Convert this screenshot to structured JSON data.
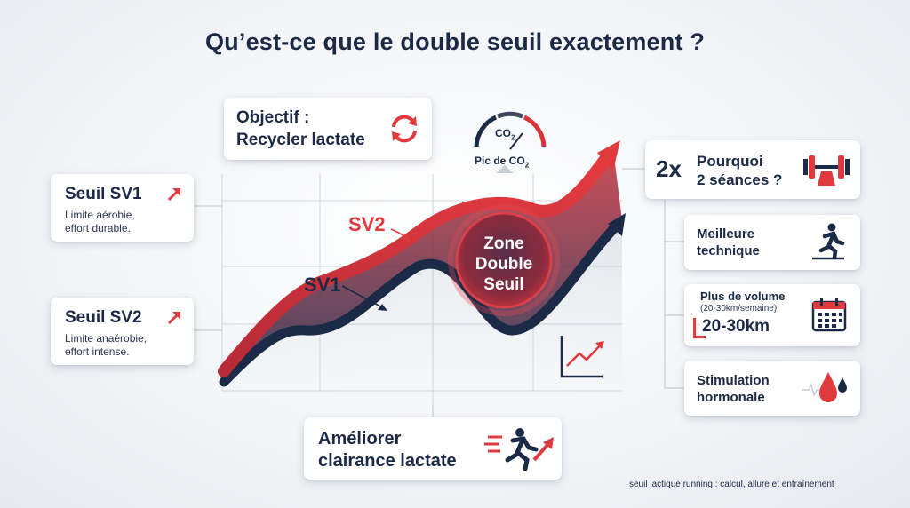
{
  "title": "Qu’est-ce que le double seuil exactement ?",
  "objective": {
    "line1": "Objectif :",
    "line2": "Recycler lactate",
    "icon": "recycle-icon"
  },
  "gauge": {
    "co2": "CO",
    "sub": "2",
    "label": "Pic de CO",
    "label_sub": "2",
    "icon": "gauge-icon"
  },
  "sv1_card": {
    "title": "Seuil SV1",
    "line1": "Limite aérobie,",
    "line2": "effort durable.",
    "icon": "arrow-up-right-icon"
  },
  "sv2_card": {
    "title": "Seuil SV2",
    "line1": "Limite anaérobie,",
    "line2": "effort intense.",
    "icon": "arrow-up-right-icon"
  },
  "chart": {
    "sv1_label": "SV1",
    "sv2_label": "SV2",
    "zone_line1": "Zone",
    "zone_line2": "Double",
    "zone_line3": "Seuil",
    "red_color": "#e03a3e",
    "navy_color": "#1b2a47"
  },
  "bottom_card": {
    "line1": "Améliorer",
    "line2": "clairance lactate",
    "icon": "runner-icon"
  },
  "right": {
    "why": {
      "prefix": "2x",
      "line1": "Pourquoi",
      "line2": "2 séances ?",
      "icon": "dumbbell-icon"
    },
    "items": [
      {
        "line1": "Meilleure",
        "line2": "technique",
        "icon": "runner-icon"
      },
      {
        "line1": "Plus de volume",
        "sub": "(20-30km/semaine)",
        "big": "20-30km",
        "icon": "calendar-icon"
      },
      {
        "line1": "Stimulation",
        "line2": "hormonale",
        "icon": "blood-drop-icon"
      }
    ]
  },
  "footer": "seuil lactique running : calcul, allure et entraînement"
}
